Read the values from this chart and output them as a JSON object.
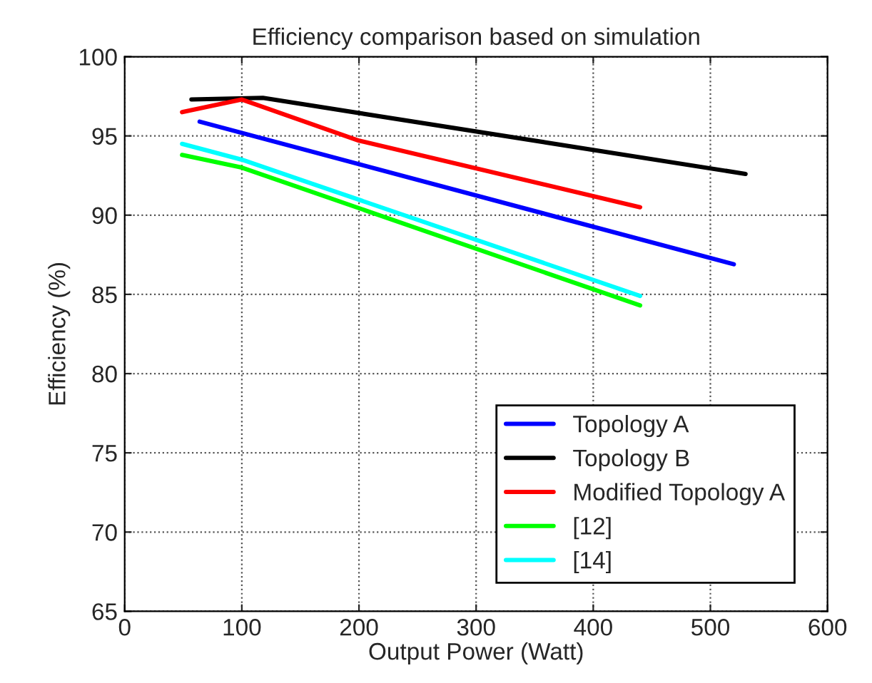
{
  "chart_data": {
    "type": "line",
    "title": "Efficiency comparison based on simulation",
    "xlabel": "Output Power (Watt)",
    "ylabel": "Efficiency (%)",
    "series": [
      {
        "name": "Topology A",
        "color": "#0000ff",
        "x": [
          64,
          520
        ],
        "values": [
          95.9,
          86.9
        ]
      },
      {
        "name": "Topology B",
        "color": "#000000",
        "x": [
          57,
          118,
          530
        ],
        "values": [
          97.3,
          97.4,
          92.6
        ]
      },
      {
        "name": "Modified Topology A",
        "color": "#ff0000",
        "x": [
          49,
          100,
          200,
          440
        ],
        "values": [
          96.5,
          97.3,
          94.7,
          90.5
        ]
      },
      {
        "name": "[12]",
        "color": "#00ff00",
        "x": [
          49,
          100,
          440
        ],
        "values": [
          93.8,
          93.0,
          84.3
        ]
      },
      {
        "name": "[14]",
        "color": "#00ffff",
        "x": [
          49,
          100,
          440
        ],
        "values": [
          94.5,
          93.5,
          84.9
        ]
      }
    ],
    "xlim": [
      0,
      600
    ],
    "xticks": [
      0,
      100,
      200,
      300,
      400,
      500,
      600
    ],
    "ylim": [
      65,
      100
    ],
    "yticks": [
      65,
      70,
      75,
      80,
      85,
      90,
      95,
      100
    ],
    "grid": true,
    "legend": "bottom right",
    "line_style": "solid",
    "marker": "none"
  }
}
